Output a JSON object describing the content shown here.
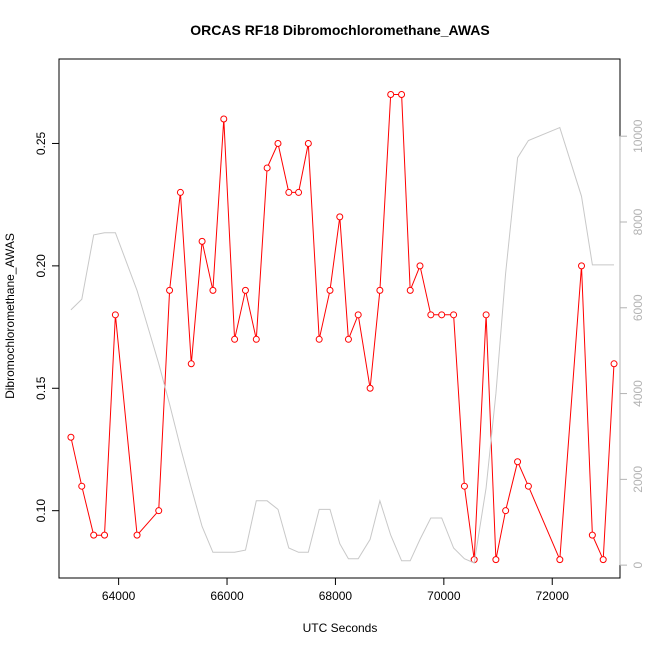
{
  "chart_data": {
    "type": "line",
    "title": "ORCAS RF18 Dibromochloromethane_AWAS",
    "xlabel": "UTC Seconds",
    "ylabel": "Dibromochloromethane_AWAS",
    "xlim": [
      62900,
      73250
    ],
    "ylim": [
      0.0725,
      0.2845
    ],
    "y2lim": [
      -300,
      11800
    ],
    "x_ticks": [
      64000,
      66000,
      68000,
      70000,
      72000
    ],
    "y_ticks": [
      0.1,
      0.15,
      0.2,
      0.25
    ],
    "y_tick_labels": [
      "0.10",
      "0.15",
      "0.20",
      "0.25"
    ],
    "y2_ticks": [
      0,
      2000,
      4000,
      6000,
      8000,
      10000
    ],
    "grid": false,
    "colors": {
      "primary": "#ff0000",
      "secondary": "#c8c8c8",
      "axis": "#000000",
      "secondary_ticks": "#b3b3b3"
    },
    "series": [
      {
        "axis": "left",
        "style": "line+points",
        "x": [
          63120,
          63320,
          63540,
          63740,
          63940,
          64340,
          64740,
          64940,
          65140,
          65340,
          65540,
          65740,
          65940,
          66140,
          66340,
          66540,
          66740,
          66940,
          67140,
          67320,
          67500,
          67700,
          67900,
          68080,
          68240,
          68420,
          68640,
          68820,
          69020,
          69220,
          69380,
          69560,
          69760,
          69960,
          70180,
          70380,
          70560,
          70780,
          70960,
          71140,
          71360,
          71560,
          72140,
          72540,
          72740,
          72940,
          73140
        ],
        "y": [
          0.13,
          0.11,
          0.09,
          0.09,
          0.18,
          0.09,
          0.1,
          0.19,
          0.23,
          0.16,
          0.21,
          0.19,
          0.26,
          0.17,
          0.19,
          0.17,
          0.24,
          0.25,
          0.23,
          0.23,
          0.25,
          0.17,
          0.19,
          0.22,
          0.17,
          0.18,
          0.15,
          0.19,
          0.27,
          0.27,
          0.19,
          0.2,
          0.18,
          0.18,
          0.18,
          0.11,
          0.08,
          0.18,
          0.08,
          0.1,
          0.12,
          0.11,
          0.08,
          0.2,
          0.09,
          0.08,
          0.16
        ]
      },
      {
        "axis": "right",
        "style": "line",
        "x": [
          63120,
          63320,
          63540,
          63740,
          63940,
          64340,
          64740,
          64940,
          65140,
          65340,
          65540,
          65740,
          65940,
          66140,
          66340,
          66540,
          66740,
          66940,
          67140,
          67320,
          67500,
          67700,
          67900,
          68080,
          68240,
          68420,
          68640,
          68820,
          69020,
          69220,
          69380,
          69560,
          69760,
          69960,
          70180,
          70380,
          70560,
          70780,
          70960,
          71140,
          71360,
          71560,
          72140,
          72540,
          72740,
          72940,
          73140
        ],
        "y": [
          5950,
          6200,
          7700,
          7750,
          7750,
          6400,
          4700,
          3750,
          2750,
          1800,
          900,
          300,
          300,
          300,
          350,
          1500,
          1500,
          1300,
          400,
          300,
          300,
          1300,
          1300,
          500,
          150,
          150,
          600,
          1500,
          700,
          100,
          100,
          600,
          1100,
          1100,
          400,
          150,
          50,
          1800,
          4000,
          6800,
          9500,
          9900,
          10200,
          8600,
          7000,
          7000,
          7000
        ]
      }
    ]
  }
}
